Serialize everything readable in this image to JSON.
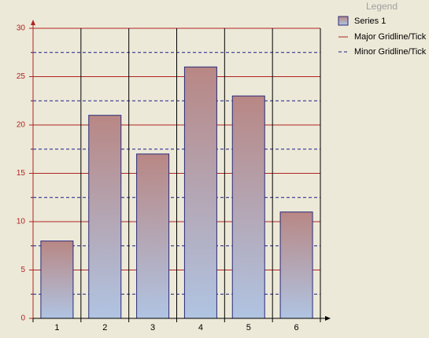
{
  "chart_data": {
    "type": "bar",
    "categories": [
      "1",
      "2",
      "3",
      "4",
      "5",
      "6"
    ],
    "series": [
      {
        "name": "Series 1",
        "values": [
          8,
          21,
          17,
          26,
          23,
          11
        ]
      }
    ],
    "ylim": [
      0,
      30
    ],
    "yticks": [
      0,
      5,
      10,
      15,
      20,
      25,
      30
    ],
    "minor_yticks": [
      2.5,
      7.5,
      12.5,
      17.5,
      22.5,
      27.5
    ],
    "grid": true,
    "major_grid_color": "#b22222",
    "minor_grid_color": "#1c1c8c",
    "bar_top_color": "#b88784",
    "bar_bottom_color": "#b0c4e2",
    "bar_edge_color": "#2a2a7a",
    "legend": {
      "title": "Legend",
      "major_label": "Major Gridline/Tick",
      "minor_label": "Minor Gridline/Tick",
      "position": "top-right"
    }
  }
}
